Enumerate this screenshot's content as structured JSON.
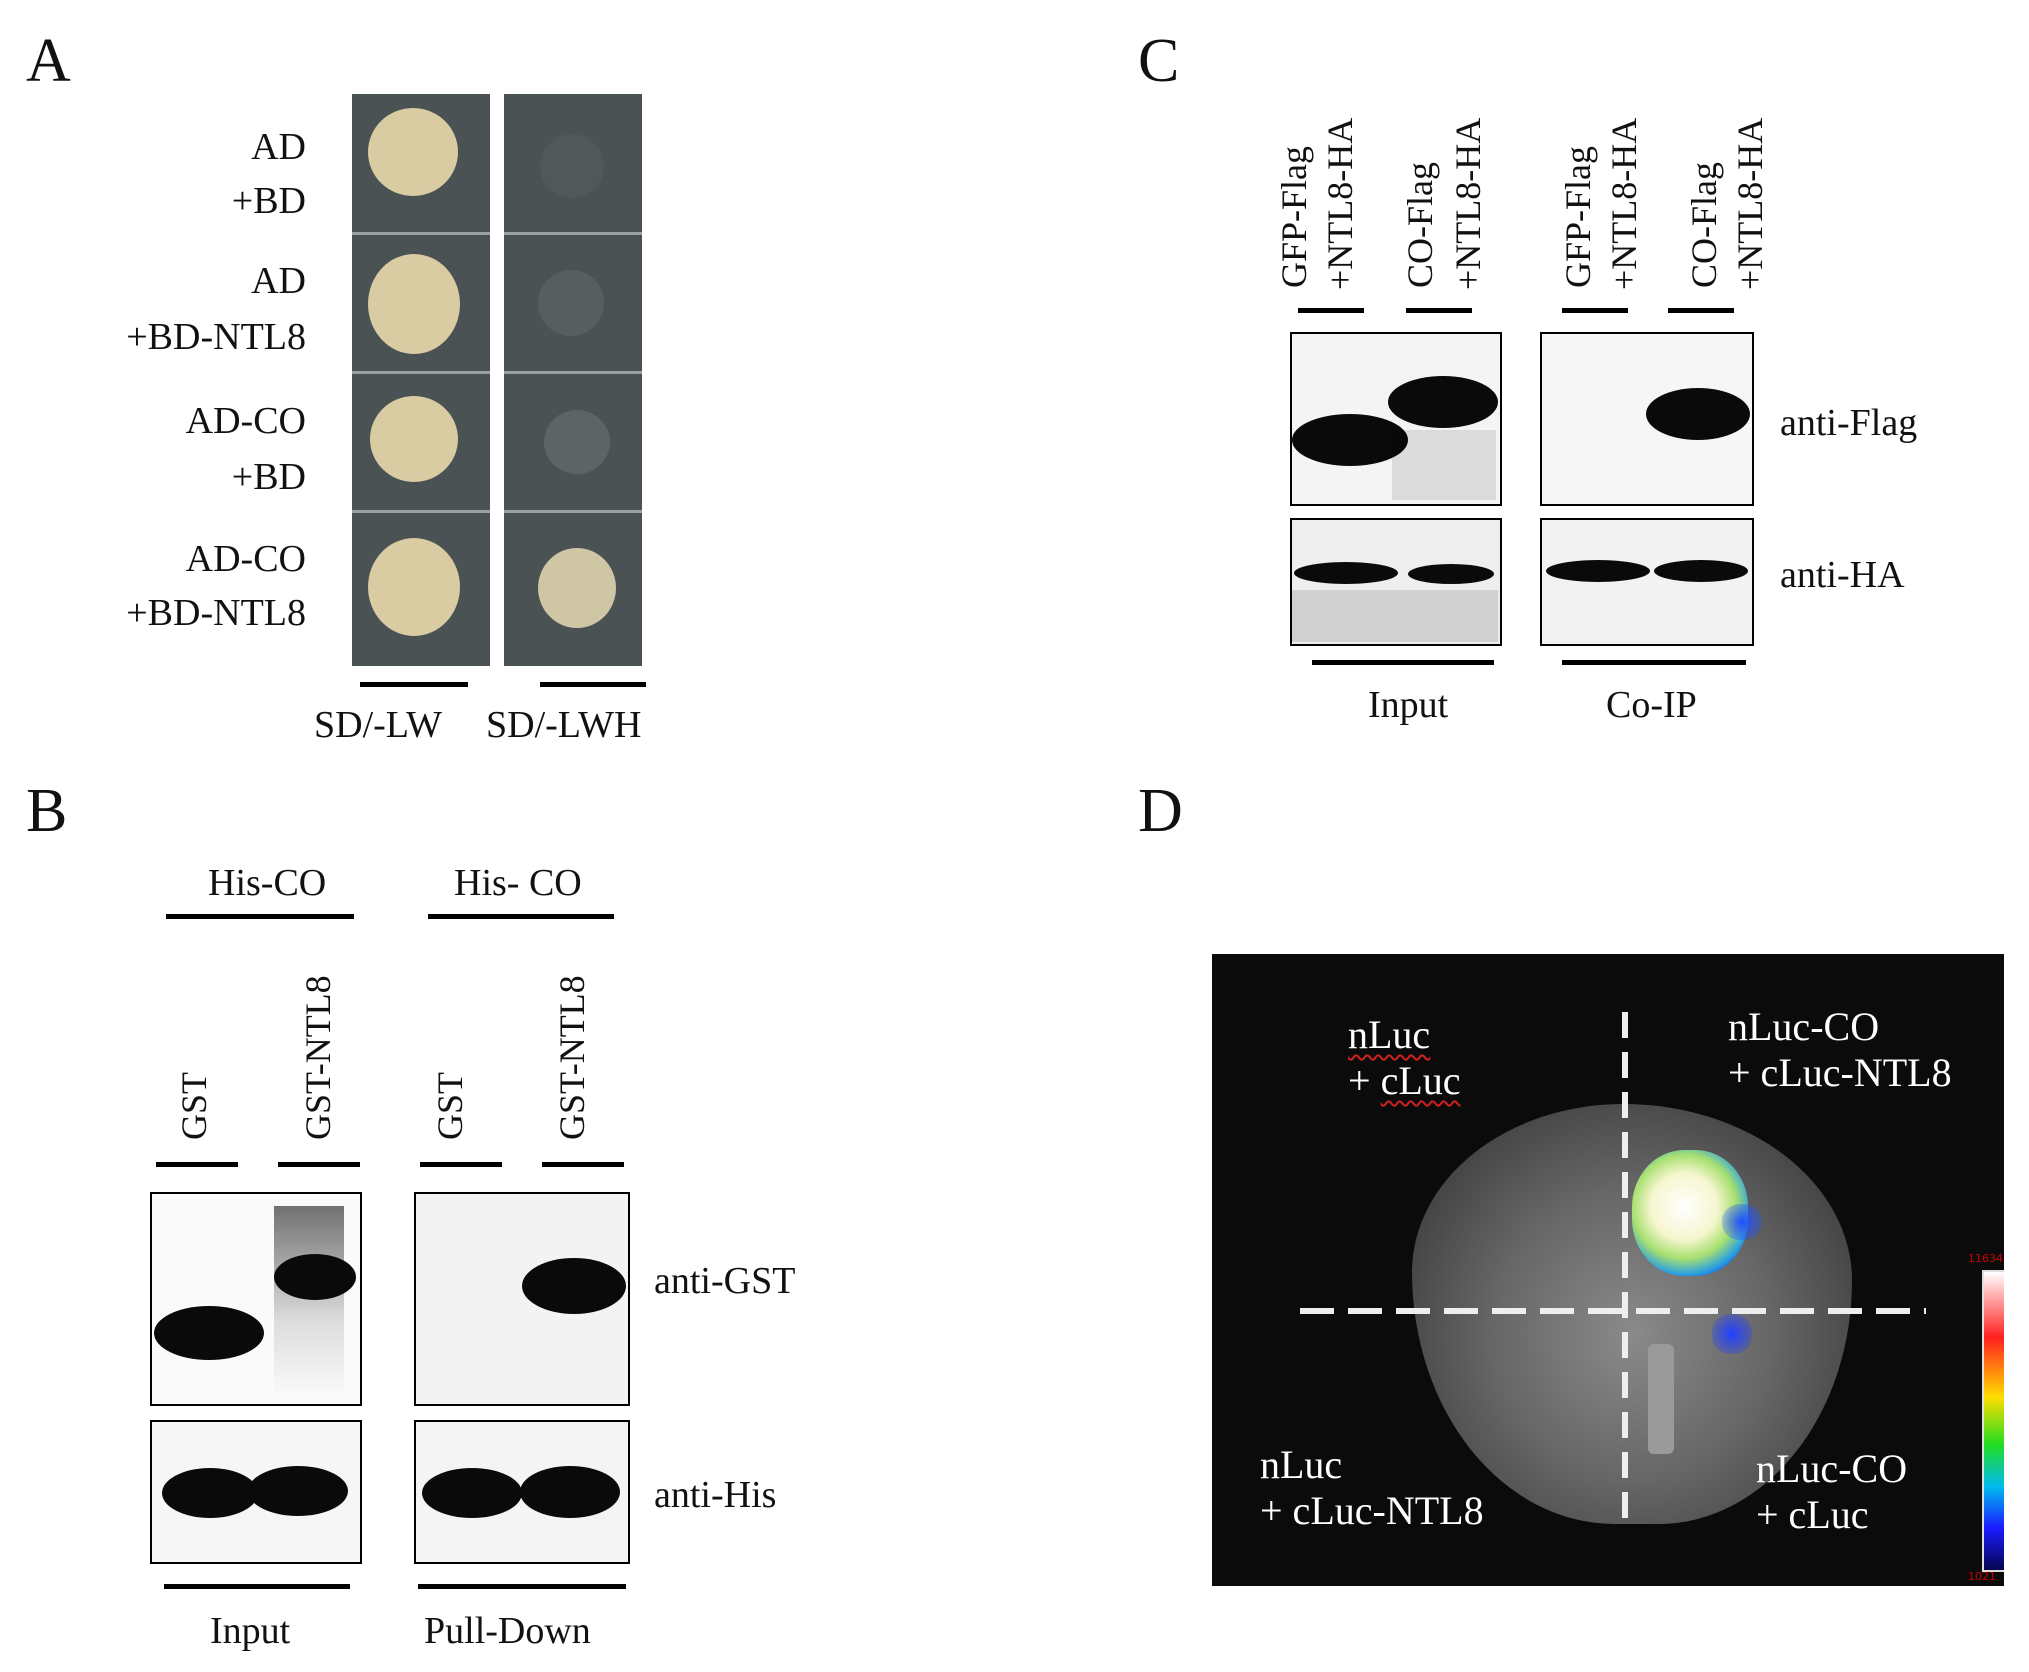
{
  "panels": {
    "A": {
      "letter": "A",
      "rows": [
        {
          "line1": "AD",
          "line2": "+BD"
        },
        {
          "line1": "AD",
          "line2": "+BD-NTL8"
        },
        {
          "line1": "AD-CO",
          "line2": "+BD"
        },
        {
          "line1": "AD-CO",
          "line2": "+BD-NTL8"
        }
      ],
      "media": [
        "SD/-LW",
        "SD/-LWH"
      ]
    },
    "B": {
      "letter": "B",
      "groups": [
        "His-CO",
        "His- CO"
      ],
      "lanes": [
        "GST",
        "GST-NTL8",
        "GST",
        "GST-NTL8"
      ],
      "antibodies": [
        "anti-GST",
        "anti-His"
      ],
      "bottom": [
        "Input",
        "Pull-Down"
      ]
    },
    "C": {
      "letter": "C",
      "lanes": [
        {
          "a": "GFP-Flag",
          "b": "+NTL8-HA"
        },
        {
          "a": "CO-Flag",
          "b": "+NTL8-HA"
        },
        {
          "a": "GFP-Flag",
          "b": "+NTL8-HA"
        },
        {
          "a": "CO-Flag",
          "b": "+NTL8-HA"
        }
      ],
      "antibodies": [
        "anti-Flag",
        "anti-HA"
      ],
      "bottom": [
        "Input",
        "Co-IP"
      ]
    },
    "D": {
      "letter": "D",
      "quadrants": {
        "tl": {
          "l1": "nLuc",
          "l2": "+ cLuc"
        },
        "tr": {
          "l1": "nLuc-CO",
          "l2": "+ cLuc-NTL8"
        },
        "bl": {
          "l1": "nLuc",
          "l2": "+ cLuc-NTL8"
        },
        "br": {
          "l1": "nLuc-CO",
          "l2": "+ cLuc"
        }
      },
      "scale_max": "11634",
      "scale_min": "1021"
    }
  }
}
